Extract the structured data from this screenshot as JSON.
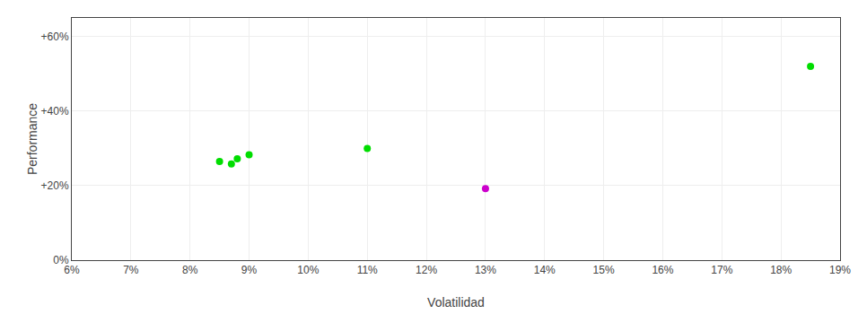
{
  "chart_data": {
    "type": "scatter",
    "xlabel": "Volatilidad",
    "ylabel": "Performance",
    "series": [
      {
        "color": "#00dd00",
        "x": [
          0.085,
          0.087,
          0.088,
          0.09,
          0.11,
          0.185
        ],
        "values": [
          0.265,
          0.258,
          0.272,
          0.283,
          0.3,
          0.52
        ]
      },
      {
        "color": "#cc00cc",
        "x": [
          0.13
        ],
        "values": [
          0.192
        ]
      }
    ],
    "xlim": [
      0.06,
      0.19
    ],
    "ylim": [
      0.0,
      0.65
    ],
    "xticks": [
      {
        "value": 0.06,
        "label": "6%"
      },
      {
        "value": 0.07,
        "label": "7%"
      },
      {
        "value": 0.08,
        "label": "8%"
      },
      {
        "value": 0.09,
        "label": "9%"
      },
      {
        "value": 0.1,
        "label": "10%"
      },
      {
        "value": 0.11,
        "label": "11%"
      },
      {
        "value": 0.12,
        "label": "12%"
      },
      {
        "value": 0.13,
        "label": "13%"
      },
      {
        "value": 0.14,
        "label": "14%"
      },
      {
        "value": 0.15,
        "label": "15%"
      },
      {
        "value": 0.16,
        "label": "16%"
      },
      {
        "value": 0.17,
        "label": "17%"
      },
      {
        "value": 0.18,
        "label": "18%"
      },
      {
        "value": 0.19,
        "label": "19%"
      }
    ],
    "yticks": [
      {
        "value": 0.0,
        "label": "0%"
      },
      {
        "value": 0.2,
        "label": "+20%"
      },
      {
        "value": 0.4,
        "label": "+40%"
      },
      {
        "value": 0.6,
        "label": "+60%"
      }
    ],
    "grid": true
  }
}
